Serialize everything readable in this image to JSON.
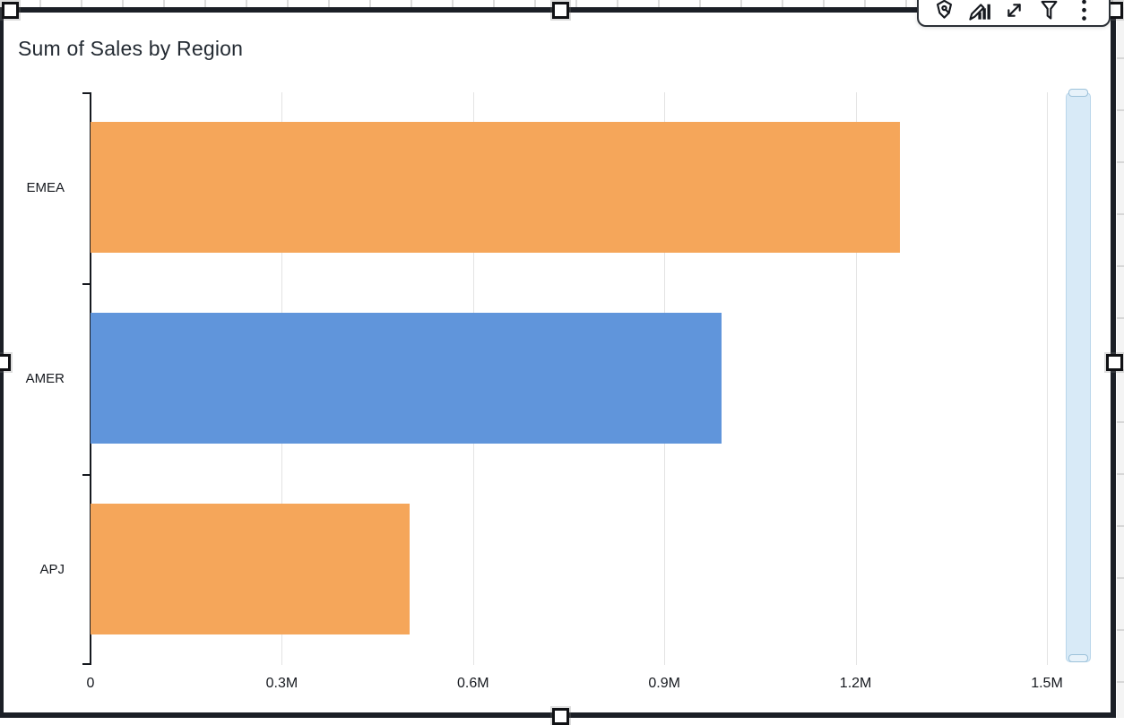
{
  "widget": {
    "title": "Sum of Sales by Region",
    "state": "selected",
    "toolbar": {
      "icons": [
        "pen-nib-icon",
        "edit-chart-icon",
        "resize-arrows-icon",
        "filter-funnel-icon",
        "menu-dots-icon"
      ]
    }
  },
  "colors": {
    "selection_border": "#1b1f26",
    "axis": "#16191f",
    "gridline": "#e3e3e3",
    "bar_orange": "#F5A65A",
    "bar_blue": "#6095DB",
    "scrollbar_track": "#d8eaf7",
    "scrollbar_border": "#b9d6ea"
  },
  "chart_data": {
    "type": "bar",
    "orientation": "horizontal",
    "title": "Sum of Sales by Region",
    "categories": [
      "EMEA",
      "AMER",
      "APJ"
    ],
    "values": [
      1270000,
      990000,
      500000
    ],
    "bar_colors": [
      "#F5A65A",
      "#6095DB",
      "#F5A65A"
    ],
    "xlabel": "",
    "ylabel": "",
    "xlim": [
      0,
      1500000
    ],
    "x_ticks": [
      {
        "value": 0,
        "label": "0"
      },
      {
        "value": 300000,
        "label": "0.3M"
      },
      {
        "value": 600000,
        "label": "0.6M"
      },
      {
        "value": 900000,
        "label": "0.9M"
      },
      {
        "value": 1200000,
        "label": "1.2M"
      },
      {
        "value": 1500000,
        "label": "1.5M"
      }
    ],
    "grid": "vertical",
    "legend": "none"
  }
}
